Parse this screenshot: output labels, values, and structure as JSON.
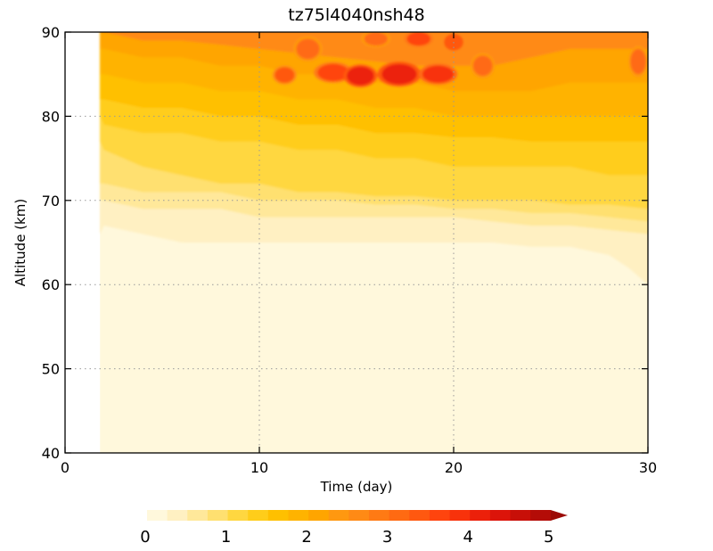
{
  "chart_data": {
    "type": "heatmap",
    "title": "tz75l4040nsh48",
    "xlabel": "Time (day)",
    "ylabel": "Altitude (km)",
    "xlim": [
      0,
      30
    ],
    "ylim": [
      40,
      90
    ],
    "x_ticks": [
      0,
      10,
      20,
      30
    ],
    "y_ticks": [
      40,
      50,
      60,
      70,
      80,
      90
    ],
    "grid": "dotted",
    "data_start_day": 1.8,
    "layers": [
      {
        "level": 0.25,
        "edge": [
          [
            0,
            66
          ],
          [
            2,
            67
          ],
          [
            4,
            66
          ],
          [
            6,
            65
          ],
          [
            8,
            65
          ],
          [
            10,
            65
          ],
          [
            12,
            65
          ],
          [
            14,
            65
          ],
          [
            16,
            65
          ],
          [
            18,
            65
          ],
          [
            20,
            65
          ],
          [
            22,
            65
          ],
          [
            24,
            64.5
          ],
          [
            26,
            64.5
          ],
          [
            28,
            63.5
          ],
          [
            29,
            62
          ],
          [
            30,
            60
          ]
        ]
      },
      {
        "level": 0.5,
        "edge": [
          [
            0,
            70
          ],
          [
            2,
            70
          ],
          [
            4,
            69
          ],
          [
            6,
            69
          ],
          [
            8,
            69
          ],
          [
            10,
            68
          ],
          [
            12,
            68
          ],
          [
            14,
            68
          ],
          [
            16,
            68
          ],
          [
            18,
            68
          ],
          [
            20,
            68
          ],
          [
            22,
            67.5
          ],
          [
            24,
            67
          ],
          [
            26,
            67
          ],
          [
            28,
            66.5
          ],
          [
            30,
            66
          ]
        ]
      },
      {
        "level": 0.75,
        "edge": [
          [
            0,
            72
          ],
          [
            2,
            72
          ],
          [
            4,
            71
          ],
          [
            6,
            71
          ],
          [
            8,
            71
          ],
          [
            10,
            70
          ],
          [
            12,
            70
          ],
          [
            14,
            70
          ],
          [
            16,
            69.5
          ],
          [
            18,
            69.5
          ],
          [
            20,
            69
          ],
          [
            22,
            69
          ],
          [
            24,
            68.5
          ],
          [
            26,
            68.5
          ],
          [
            28,
            68
          ],
          [
            30,
            67.5
          ]
        ]
      },
      {
        "level": 1.0,
        "edge": [
          [
            0,
            77
          ],
          [
            2,
            76
          ],
          [
            4,
            74
          ],
          [
            6,
            73
          ],
          [
            8,
            72
          ],
          [
            10,
            72
          ],
          [
            12,
            71
          ],
          [
            14,
            71
          ],
          [
            16,
            70.5
          ],
          [
            18,
            70.5
          ],
          [
            20,
            70
          ],
          [
            22,
            70
          ],
          [
            24,
            70
          ],
          [
            26,
            69.5
          ],
          [
            28,
            69.5
          ],
          [
            30,
            69
          ]
        ]
      },
      {
        "level": 1.25,
        "edge": [
          [
            0,
            80
          ],
          [
            2,
            79
          ],
          [
            4,
            78
          ],
          [
            6,
            78
          ],
          [
            8,
            77
          ],
          [
            10,
            77
          ],
          [
            12,
            76
          ],
          [
            14,
            76
          ],
          [
            16,
            75
          ],
          [
            18,
            75
          ],
          [
            20,
            74
          ],
          [
            22,
            74
          ],
          [
            24,
            74
          ],
          [
            26,
            74
          ],
          [
            28,
            73
          ],
          [
            30,
            73
          ]
        ]
      },
      {
        "level": 1.5,
        "edge": [
          [
            0,
            82
          ],
          [
            2,
            82
          ],
          [
            4,
            81
          ],
          [
            6,
            81
          ],
          [
            8,
            80
          ],
          [
            10,
            80
          ],
          [
            12,
            79
          ],
          [
            14,
            79
          ],
          [
            16,
            78
          ],
          [
            18,
            78
          ],
          [
            20,
            77.5
          ],
          [
            22,
            77.5
          ],
          [
            24,
            77
          ],
          [
            26,
            77
          ],
          [
            28,
            77
          ],
          [
            30,
            77
          ]
        ]
      },
      {
        "level": 1.75,
        "edge": [
          [
            0,
            85
          ],
          [
            2,
            85
          ],
          [
            4,
            84
          ],
          [
            6,
            84
          ],
          [
            8,
            83
          ],
          [
            10,
            83
          ],
          [
            12,
            82
          ],
          [
            14,
            82
          ],
          [
            16,
            81
          ],
          [
            18,
            81
          ],
          [
            20,
            80
          ],
          [
            22,
            80
          ],
          [
            24,
            80
          ],
          [
            26,
            80
          ],
          [
            28,
            80
          ],
          [
            30,
            80
          ]
        ]
      },
      {
        "level": 2.0,
        "edge": [
          [
            0,
            88
          ],
          [
            2,
            88
          ],
          [
            4,
            87
          ],
          [
            6,
            87
          ],
          [
            8,
            86
          ],
          [
            10,
            86
          ],
          [
            12,
            85
          ],
          [
            14,
            85
          ],
          [
            16,
            84
          ],
          [
            18,
            84
          ],
          [
            20,
            83
          ],
          [
            22,
            83
          ],
          [
            24,
            83
          ],
          [
            26,
            84
          ],
          [
            28,
            84
          ],
          [
            30,
            84
          ]
        ]
      },
      {
        "level": 2.5,
        "edge": [
          [
            0,
            90
          ],
          [
            2,
            90
          ],
          [
            4,
            89
          ],
          [
            6,
            89
          ],
          [
            8,
            88.5
          ],
          [
            10,
            88
          ],
          [
            12,
            87.5
          ],
          [
            14,
            87
          ],
          [
            16,
            86.5
          ],
          [
            18,
            86
          ],
          [
            20,
            86
          ],
          [
            22,
            86
          ],
          [
            24,
            87
          ],
          [
            26,
            88
          ],
          [
            28,
            88
          ],
          [
            30,
            88
          ]
        ]
      }
    ],
    "blobs": [
      {
        "x": 11.3,
        "y": 84.9,
        "rx": 0.5,
        "ry": 0.9,
        "level": 3.25
      },
      {
        "x": 13.8,
        "y": 85.2,
        "rx": 0.8,
        "ry": 1.0,
        "level": 3.5
      },
      {
        "x": 15.2,
        "y": 84.8,
        "rx": 0.7,
        "ry": 1.1,
        "level": 4.0
      },
      {
        "x": 17.2,
        "y": 85.0,
        "rx": 0.9,
        "ry": 1.2,
        "level": 4.0
      },
      {
        "x": 19.2,
        "y": 85.0,
        "rx": 0.8,
        "ry": 1.0,
        "level": 3.75
      },
      {
        "x": 18.2,
        "y": 89.2,
        "rx": 0.6,
        "ry": 0.8,
        "level": 3.5
      },
      {
        "x": 20.0,
        "y": 88.8,
        "rx": 0.5,
        "ry": 1.0,
        "level": 3.25
      },
      {
        "x": 16.0,
        "y": 89.2,
        "rx": 0.6,
        "ry": 0.8,
        "level": 3.0
      },
      {
        "x": 21.5,
        "y": 86.0,
        "rx": 0.5,
        "ry": 1.2,
        "level": 3.0
      },
      {
        "x": 12.5,
        "y": 88.0,
        "rx": 0.6,
        "ry": 1.2,
        "level": 3.0
      },
      {
        "x": 29.5,
        "y": 86.5,
        "rx": 0.4,
        "ry": 1.5,
        "level": 3.0
      }
    ],
    "colorbar": {
      "min": 0,
      "max": 5,
      "step": 0.25,
      "ticks": [
        "0",
        "1",
        "2",
        "3",
        "4",
        "5"
      ],
      "extend": "max",
      "colors": [
        "#fff8dc",
        "#fff0c2",
        "#ffe89a",
        "#ffe070",
        "#ffd740",
        "#ffcd1a",
        "#ffc000",
        "#ffb300",
        "#ffa500",
        "#ff9810",
        "#ff8a15",
        "#ff7a14",
        "#ff6a12",
        "#ff5810",
        "#ff440e",
        "#f8320b",
        "#ec200a",
        "#dc140a",
        "#c80f08",
        "#b40c07",
        "#9c0a06"
      ]
    }
  }
}
